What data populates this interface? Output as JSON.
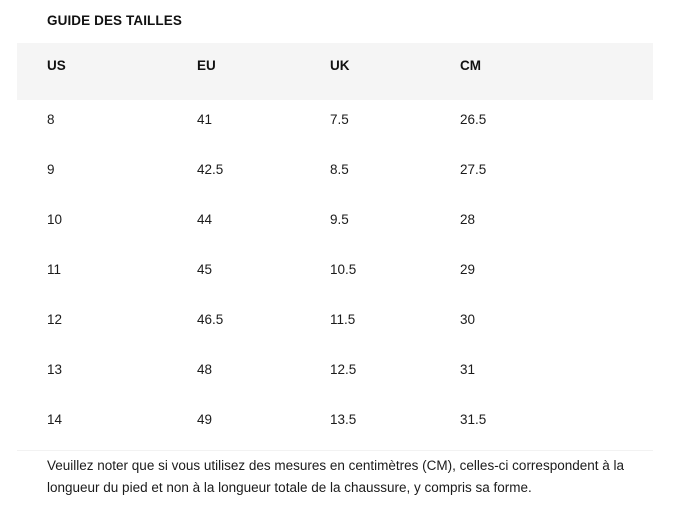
{
  "title": "GUIDE DES TAILLES",
  "table": {
    "columns": [
      "US",
      "EU",
      "UK",
      "CM"
    ],
    "rows": [
      [
        "8",
        "41",
        "7.5",
        "26.5"
      ],
      [
        "9",
        "42.5",
        "8.5",
        "27.5"
      ],
      [
        "10",
        "44",
        "9.5",
        "28"
      ],
      [
        "11",
        "45",
        "10.5",
        "29"
      ],
      [
        "12",
        "46.5",
        "11.5",
        "30"
      ],
      [
        "13",
        "48",
        "12.5",
        "31"
      ],
      [
        "14",
        "49",
        "13.5",
        "31.5"
      ]
    ]
  },
  "note": "Veuillez noter que si vous utilisez des mesures en centimètres (CM), celles-ci correspondent à la longueur du pied et non à la longueur totale de la chaussure, y compris sa forme.",
  "colors": {
    "header_bg": "#f5f5f5",
    "text": "#1b1b1b"
  }
}
